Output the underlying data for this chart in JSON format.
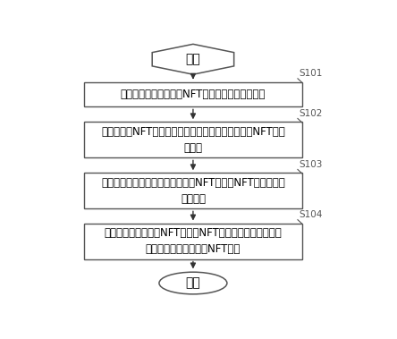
{
  "background_color": "#ffffff",
  "start_text": "开始",
  "end_text": "结束",
  "boxes": [
    {
      "text": "获取用户创作的待评测NFT的属性名称及其属性值",
      "label": "S101",
      "two_lines": false
    },
    {
      "text": "根据待评测NFT的属性名称及其属性值，建立待评测NFT的属\n性矩阵",
      "label": "S102",
      "two_lines": true
    },
    {
      "text": "利用定性映射模型，将每个待评测NFT与现有NFT的相似程度\n进行判别",
      "label": "S103",
      "two_lines": true
    },
    {
      "text": "当判别结果为待评测NFT与现有NFT的相似度未超过预设值\n时，允许相应的待评测NFT生成",
      "label": "S104",
      "two_lines": true
    }
  ],
  "box_facecolor": "#ffffff",
  "box_edgecolor": "#555555",
  "arrow_color": "#333333",
  "label_color": "#555555",
  "font_size_box": 8.5,
  "font_size_terminal": 10,
  "font_size_label": 7.5
}
